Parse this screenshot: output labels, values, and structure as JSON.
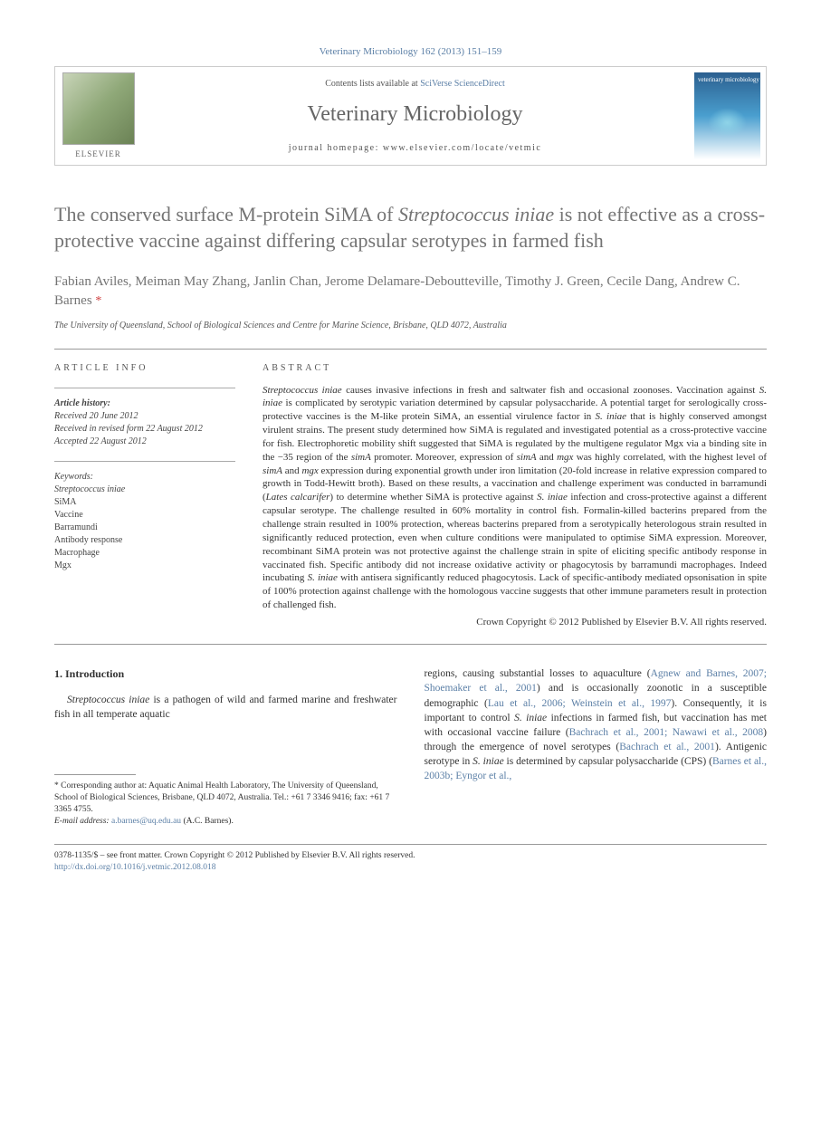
{
  "header": {
    "citation": "Veterinary Microbiology 162 (2013) 151–159",
    "contents_prefix": "Contents lists available at ",
    "contents_link": "SciVerse ScienceDirect",
    "journal": "Veterinary Microbiology",
    "homepage_prefix": "journal homepage: ",
    "homepage_url": "www.elsevier.com/locate/vetmic",
    "publisher_label": "ELSEVIER",
    "cover_label": "veterinary microbiology"
  },
  "title": {
    "html": "The conserved surface M-protein SiMA of <em>Streptococcus iniae</em> is not effective as a cross-protective vaccine against differing capsular serotypes in farmed fish"
  },
  "authors": {
    "line": "Fabian Aviles, Meiman May Zhang, Janlin Chan, Jerome Delamare-Deboutteville, Timothy J. Green, Cecile Dang, Andrew C. Barnes",
    "corr_symbol": "*"
  },
  "affiliation": "The University of Queensland, School of Biological Sciences and Centre for Marine Science, Brisbane, QLD 4072, Australia",
  "article_info": {
    "heading": "ARTICLE INFO",
    "history_label": "Article history:",
    "received": "Received 20 June 2012",
    "revised": "Received in revised form 22 August 2012",
    "accepted": "Accepted 22 August 2012",
    "keywords_label": "Keywords:",
    "keywords": [
      "Streptococcus iniae",
      "SiMA",
      "Vaccine",
      "Barramundi",
      "Antibody response",
      "Macrophage",
      "Mgx"
    ]
  },
  "abstract": {
    "heading": "ABSTRACT",
    "text_html": "<em>Streptococcus iniae</em> causes invasive infections in fresh and saltwater fish and occasional zoonoses. Vaccination against <em>S. iniae</em> is complicated by serotypic variation determined by capsular polysaccharide. A potential target for serologically cross-protective vaccines is the M-like protein SiMA, an essential virulence factor in <em>S. iniae</em> that is highly conserved amongst virulent strains. The present study determined how SiMA is regulated and investigated potential as a cross-protective vaccine for fish. Electrophoretic mobility shift suggested that SiMA is regulated by the multigene regulator Mgx via a binding site in the −35 region of the <em>simA</em> promoter. Moreover, expression of <em>simA</em> and <em>mgx</em> was highly correlated, with the highest level of <em>simA</em> and <em>mgx</em> expression during exponential growth under iron limitation (20-fold increase in relative expression compared to growth in Todd-Hewitt broth). Based on these results, a vaccination and challenge experiment was conducted in barramundi (<em>Lates calcarifer</em>) to determine whether SiMA is protective against <em>S. iniae</em> infection and cross-protective against a different capsular serotype. The challenge resulted in 60% mortality in control fish. Formalin-killed bacterins prepared from the challenge strain resulted in 100% protection, whereas bacterins prepared from a serotypically heterologous strain resulted in significantly reduced protection, even when culture conditions were manipulated to optimise SiMA expression. Moreover, recombinant SiMA protein was not protective against the challenge strain in spite of eliciting specific antibody response in vaccinated fish. Specific antibody did not increase oxidative activity or phagocytosis by barramundi macrophages. Indeed incubating <em>S. iniae</em> with antisera significantly reduced phagocytosis. Lack of specific-antibody mediated opsonisation in spite of 100% protection against challenge with the homologous vaccine suggests that other immune parameters result in protection of challenged fish.",
    "copyright": "Crown Copyright © 2012 Published by Elsevier B.V. All rights reserved."
  },
  "body": {
    "section_number": "1.",
    "section_title": "Introduction",
    "left_html": "<em>Streptococcus iniae</em> is a pathogen of wild and farmed marine and freshwater fish in all temperate aquatic",
    "right_html": "regions, causing substantial losses to aquaculture (<a href=\"#\">Agnew and Barnes, 2007; Shoemaker et al., 2001</a>) and is occasionally zoonotic in a susceptible demographic (<a href=\"#\">Lau et al., 2006; Weinstein et al., 1997</a>). Consequently, it is important to control <em>S. iniae</em> infections in farmed fish, but vaccination has met with occasional vaccine failure (<a href=\"#\">Bachrach et al., 2001; Nawawi et al., 2008</a>) through the emergence of novel serotypes (<a href=\"#\">Bachrach et al., 2001</a>). Antigenic serotype in <em>S. iniae</em> is determined by capsular polysaccharide (CPS) (<a href=\"#\">Barnes et al., 2003b; Eyngor et al.,</a>"
  },
  "footnote": {
    "corr_html": "* Corresponding author at: Aquatic Animal Health Laboratory, The University of Queensland, School of Biological Sciences, Brisbane, QLD 4072, Australia. Tel.: +61 7 3346 9416; fax: +61 7 3365 4755.",
    "email_label": "E-mail address:",
    "email": "a.barnes@uq.edu.au",
    "email_suffix": " (A.C. Barnes)."
  },
  "footer": {
    "issn_line": "0378-1135/$ – see front matter. Crown Copyright © 2012 Published by Elsevier B.V. All rights reserved.",
    "doi": "http://dx.doi.org/10.1016/j.vetmic.2012.08.018"
  },
  "colors": {
    "link": "#5b7fa6",
    "title_gray": "#747474",
    "text": "#333333",
    "corr_red": "#d04040"
  }
}
